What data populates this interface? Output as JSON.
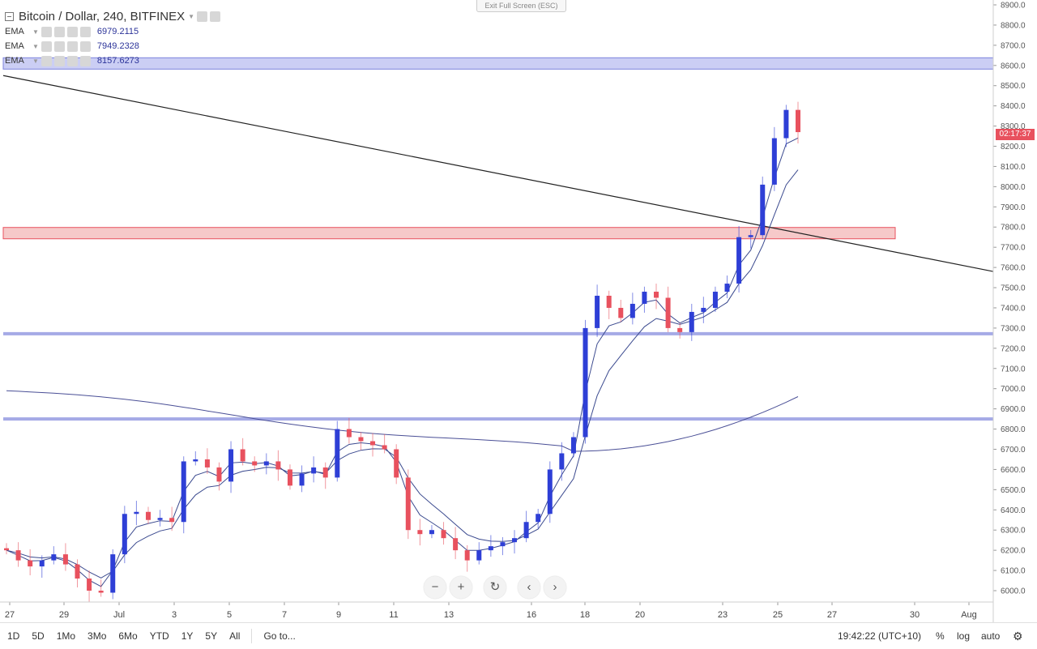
{
  "window": {
    "exit_fullscreen_label": "Exit Full Screen (ESC)"
  },
  "header": {
    "title": "Bitcoin / Dollar, 240, BITFINEX",
    "indicators": [
      {
        "name": "EMA",
        "value": "6979.2115"
      },
      {
        "name": "EMA",
        "value": "7949.2328"
      },
      {
        "name": "EMA",
        "value": "8157.6273"
      }
    ]
  },
  "price_axis": {
    "countdown_label": "02:17:37",
    "countdown_color": "#e8515e"
  },
  "time_axis": {
    "labels": [
      "27",
      "29",
      "Jul",
      "3",
      "5",
      "7",
      "9",
      "11",
      "13",
      "16",
      "18",
      "20",
      "23",
      "25",
      "27",
      "30",
      "Aug"
    ]
  },
  "nav": {
    "zoom_out": "−",
    "zoom_in": "+",
    "reset": "↻",
    "back": "‹",
    "forward": "›"
  },
  "bottom_bar": {
    "timeframes": [
      "1D",
      "5D",
      "1Mo",
      "3Mo",
      "6Mo",
      "YTD",
      "1Y",
      "5Y",
      "All"
    ],
    "goto_label": "Go to...",
    "clock": "19:42:22 (UTC+10)",
    "percent_label": "%",
    "log_label": "log",
    "auto_label": "auto",
    "settings_icon": "gear-icon"
  },
  "colors": {
    "up": "#2e3fd6",
    "down": "#e8515e",
    "ema_line": "#3b4a8f",
    "support_band": "#b9bdf0",
    "resistance_band": "#f3b7b7"
  },
  "chart_data": {
    "type": "candlestick",
    "title": "Bitcoin / Dollar, 240, BITFINEX",
    "ylim": [
      5950,
      8950
    ],
    "y_ticks": [
      6000,
      6100,
      6200,
      6300,
      6400,
      6500,
      6600,
      6700,
      6800,
      6900,
      7000,
      7100,
      7200,
      7300,
      7400,
      7500,
      7600,
      7700,
      7800,
      7900,
      8000,
      8100,
      8200,
      8300,
      8400,
      8500,
      8600,
      8700,
      8800,
      8900
    ],
    "x_ticks": [
      "27",
      "29",
      "Jul",
      "3",
      "5",
      "7",
      "9",
      "11",
      "13",
      "16",
      "18",
      "20",
      "23",
      "25",
      "27",
      "30",
      "Aug"
    ],
    "horizontal_levels": [
      {
        "kind": "band",
        "value": 8610,
        "color": "#b9bdf0"
      },
      {
        "kind": "band",
        "value": 7770,
        "color": "#f3b7b7"
      },
      {
        "kind": "line",
        "value": 7272,
        "color": "#8f95e0"
      },
      {
        "kind": "line",
        "value": 6850,
        "color": "#8f95e0"
      }
    ],
    "trendline": {
      "from": {
        "date": "Jun 26",
        "price": 8550
      },
      "to": {
        "date": "Jul 28",
        "price": 7580
      }
    },
    "ema_values": [
      6979.2115,
      7949.2328,
      8157.6273
    ],
    "last_close_segment": [
      6200,
      6150,
      6120,
      6150,
      6180,
      6130,
      6060,
      6000,
      5990,
      6180,
      6380,
      6390,
      6350,
      6360,
      6340,
      6640,
      6650,
      6610,
      6540,
      6700,
      6640,
      6620,
      6640,
      6600,
      6520,
      6580,
      6610,
      6560,
      6800,
      6760,
      6740,
      6720,
      6700,
      6560,
      6300,
      6280,
      6300,
      6260,
      6200,
      6150,
      6200,
      6220,
      6240,
      6260,
      6340,
      6380,
      6600,
      6680,
      6760,
      7300,
      7460,
      7400,
      7350,
      7420,
      7480,
      7450,
      7300,
      7280,
      7380,
      7400,
      7480,
      7520,
      7750,
      7760,
      8010,
      8240,
      8380,
      8270
    ]
  }
}
